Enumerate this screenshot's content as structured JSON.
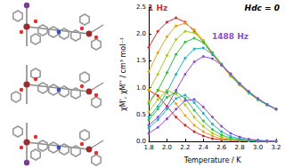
{
  "chart_data": {
    "type": "line",
    "xlabel": "Temperature / K",
    "ylabel": "χM', χM'' / cm³ mol⁻¹",
    "annotations": [
      {
        "text": "Hdc = 0",
        "color": "#000000"
      },
      {
        "text": "1 Hz",
        "color": "#d62728"
      },
      {
        "text": "1488 Hz",
        "color": "#8a4fd0"
      }
    ],
    "x": [
      1.8,
      1.9,
      2.0,
      2.1,
      2.2,
      2.3,
      2.4,
      2.5,
      2.6,
      2.7,
      2.8,
      2.9,
      3.0,
      3.1,
      3.2
    ],
    "xlim": [
      1.8,
      3.2
    ],
    "xticks": [
      1.8,
      {
        "value": 2,
        "label": "2.0"
      },
      2.2,
      2.4,
      2.6,
      2.8,
      {
        "value": 3,
        "label": "3.0"
      },
      3.2
    ],
    "ylim": [
      0,
      2.5
    ],
    "yticks": [
      {
        "value": 0,
        "label": "0.0"
      },
      0.5,
      {
        "value": 1,
        "label": "1.0"
      },
      1.5,
      {
        "value": 2,
        "label": "2.0"
      },
      2.5
    ],
    "grid": false,
    "marker": "circle",
    "series": [
      {
        "color": "#d62728",
        "values": [
          1.75,
          2.05,
          2.22,
          2.3,
          2.22,
          2.05,
          1.85,
          1.62,
          1.42,
          1.22,
          1.05,
          0.9,
          0.78,
          0.68,
          0.6
        ]
      },
      {
        "color": "#d62728",
        "values": [
          0.95,
          0.85,
          0.65,
          0.45,
          0.3,
          0.18,
          0.1,
          0.05,
          0.03,
          0.02,
          0.01,
          0.01,
          0,
          0,
          0
        ]
      },
      {
        "color": "#e8a020",
        "values": [
          1.3,
          1.65,
          1.95,
          2.15,
          2.2,
          2.08,
          1.88,
          1.64,
          1.42,
          1.22,
          1.05,
          0.9,
          0.78,
          0.68,
          0.6
        ]
      },
      {
        "color": "#e8a020",
        "values": [
          0.75,
          0.95,
          0.9,
          0.7,
          0.48,
          0.3,
          0.18,
          0.1,
          0.05,
          0.03,
          0.02,
          0.01,
          0,
          0,
          0
        ]
      },
      {
        "color": "#a8c820",
        "values": [
          0.95,
          1.25,
          1.6,
          1.9,
          2.05,
          2.02,
          1.88,
          1.65,
          1.43,
          1.23,
          1.05,
          0.9,
          0.78,
          0.68,
          0.6
        ]
      },
      {
        "color": "#a8c820",
        "values": [
          0.55,
          0.78,
          0.95,
          0.88,
          0.68,
          0.45,
          0.28,
          0.15,
          0.08,
          0.04,
          0.02,
          0.01,
          0,
          0,
          0
        ]
      },
      {
        "color": "#30c040",
        "values": [
          0.7,
          0.95,
          1.28,
          1.62,
          1.85,
          1.92,
          1.84,
          1.65,
          1.44,
          1.24,
          1.06,
          0.91,
          0.78,
          0.68,
          0.6
        ]
      },
      {
        "color": "#30c040",
        "values": [
          0.4,
          0.6,
          0.82,
          0.92,
          0.8,
          0.58,
          0.38,
          0.22,
          0.12,
          0.06,
          0.03,
          0.02,
          0.01,
          0,
          0
        ]
      },
      {
        "color": "#20b0c0",
        "values": [
          0.45,
          0.65,
          0.92,
          1.25,
          1.55,
          1.72,
          1.74,
          1.62,
          1.44,
          1.25,
          1.07,
          0.92,
          0.79,
          0.69,
          0.6
        ]
      },
      {
        "color": "#20b0c0",
        "values": [
          0.25,
          0.4,
          0.6,
          0.8,
          0.86,
          0.72,
          0.52,
          0.32,
          0.18,
          0.09,
          0.05,
          0.02,
          0.01,
          0,
          0
        ]
      },
      {
        "color": "#8a4fd0",
        "values": [
          0.3,
          0.45,
          0.65,
          0.95,
          1.25,
          1.48,
          1.58,
          1.54,
          1.42,
          1.26,
          1.08,
          0.93,
          0.8,
          0.69,
          0.6
        ]
      },
      {
        "color": "#8a4fd0",
        "values": [
          0.15,
          0.26,
          0.42,
          0.6,
          0.76,
          0.78,
          0.64,
          0.45,
          0.28,
          0.15,
          0.08,
          0.04,
          0.02,
          0.01,
          0
        ]
      }
    ]
  }
}
